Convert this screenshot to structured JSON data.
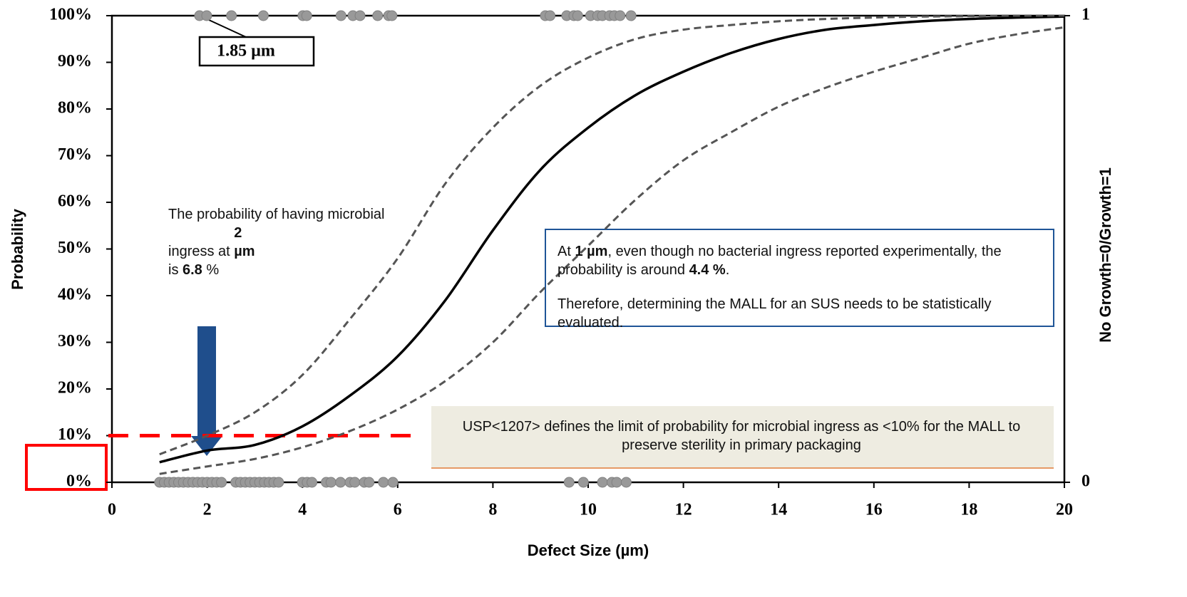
{
  "chart_data": {
    "type": "line",
    "xlabel": "Defect Size (µm)",
    "ylabel": "Probability",
    "y2label": "No Growth=0/Growth=1",
    "xlim": [
      0,
      20
    ],
    "xticks": [
      0,
      2,
      4,
      6,
      8,
      10,
      12,
      14,
      16,
      18,
      20
    ],
    "ylim": [
      0,
      100
    ],
    "yticks": [
      {
        "value": 0,
        "label": "0%"
      },
      {
        "value": 10,
        "label": "10%"
      },
      {
        "value": 20,
        "label": "20%"
      },
      {
        "value": 30,
        "label": "30%"
      },
      {
        "value": 40,
        "label": "40%"
      },
      {
        "value": 50,
        "label": "50%"
      },
      {
        "value": 60,
        "label": "60%"
      },
      {
        "value": 70,
        "label": "70%"
      },
      {
        "value": 80,
        "label": "80%"
      },
      {
        "value": 90,
        "label": "90%"
      },
      {
        "value": 100,
        "label": "100%"
      }
    ],
    "y2lim": [
      0,
      1
    ],
    "y2ticks": [
      0,
      1
    ],
    "series": [
      {
        "type": "line",
        "style": "solid",
        "color": "#000000",
        "x": [
          1,
          2,
          3,
          4,
          5,
          6,
          7,
          8,
          9,
          10,
          11,
          12,
          13,
          14,
          15,
          16,
          17,
          18,
          19,
          20
        ],
        "values": [
          4.3,
          6.8,
          8,
          12,
          18.6,
          27,
          39,
          54,
          67,
          76,
          83,
          88,
          92,
          95,
          97,
          98,
          98.8,
          99.3,
          99.6,
          99.8
        ]
      },
      {
        "type": "line",
        "style": "dashed",
        "color": "#555555",
        "x": [
          1,
          2,
          3,
          4,
          5,
          6,
          7,
          8,
          9,
          10,
          11,
          12,
          13,
          14,
          15,
          16,
          17,
          18,
          19,
          20
        ],
        "values": [
          6,
          10,
          15,
          23,
          35,
          48,
          64,
          76,
          85,
          91,
          95,
          97,
          98,
          98.8,
          99.3,
          99.6,
          99.8,
          99.9,
          100,
          100
        ]
      },
      {
        "type": "line",
        "style": "dashed",
        "color": "#555555",
        "x": [
          1,
          2,
          3,
          4,
          5,
          6,
          7,
          8,
          9,
          10,
          11,
          12,
          13,
          14,
          15,
          16,
          17,
          18,
          19,
          20
        ],
        "values": [
          1.8,
          3.4,
          5,
          7.5,
          11,
          15.6,
          21.7,
          30,
          40.8,
          50.7,
          60.6,
          69,
          75,
          80.5,
          84.6,
          88,
          91,
          94,
          96,
          97.5
        ]
      },
      {
        "type": "scatter",
        "axis": "y2",
        "color": "#999999",
        "x": [
          1.84,
          1.99,
          2.51,
          3.18,
          4.01,
          4.09,
          4.81,
          5.06,
          5.21,
          5.58,
          5.81,
          5.88,
          9.1,
          9.2,
          9.55,
          9.7,
          9.78,
          10.05,
          10.2,
          10.3,
          10.45,
          10.55,
          10.67,
          10.9
        ],
        "values": [
          1,
          1,
          1,
          1,
          1,
          1,
          1,
          1,
          1,
          1,
          1,
          1,
          1,
          1,
          1,
          1,
          1,
          1,
          1,
          1,
          1,
          1,
          1,
          1
        ]
      },
      {
        "type": "scatter",
        "axis": "y2",
        "color": "#999999",
        "x": [
          1.0,
          1.1,
          1.2,
          1.3,
          1.4,
          1.5,
          1.6,
          1.7,
          1.8,
          1.9,
          2.0,
          2.1,
          2.2,
          2.3,
          2.6,
          2.7,
          2.8,
          2.9,
          3.0,
          3.1,
          3.2,
          3.3,
          3.4,
          3.5,
          4.0,
          4.1,
          4.2,
          4.5,
          4.6,
          4.8,
          5.0,
          5.1,
          5.3,
          5.4,
          5.7,
          5.9,
          9.6,
          9.9,
          10.3,
          10.5,
          10.6,
          10.8
        ],
        "values": [
          0,
          0,
          0,
          0,
          0,
          0,
          0,
          0,
          0,
          0,
          0,
          0,
          0,
          0,
          0,
          0,
          0,
          0,
          0,
          0,
          0,
          0,
          0,
          0,
          0,
          0,
          0,
          0,
          0,
          0,
          0,
          0,
          0,
          0,
          0,
          0,
          0,
          0,
          0,
          0,
          0,
          0
        ]
      }
    ],
    "reference_line": {
      "value": 10,
      "color": "#ff0000"
    },
    "annotations": {
      "point_label": "1.85 µm",
      "note_2um": [
        "The probability of having microbial ingress at ",
        "2 µm",
        " is ",
        "6.8",
        " %"
      ],
      "note_1um": [
        "At ",
        "1 µm",
        ", even though no bacterial ingress reported experimentally, the probability is around ",
        "4.4 %",
        "."
      ],
      "note_mall": "Therefore, determining the MALL for an SUS needs to be statistically evaluated.",
      "note_usp": "USP<1207> defines the limit of probability for microbial ingress as <10% for the MALL to preserve sterility in primary packaging"
    }
  }
}
